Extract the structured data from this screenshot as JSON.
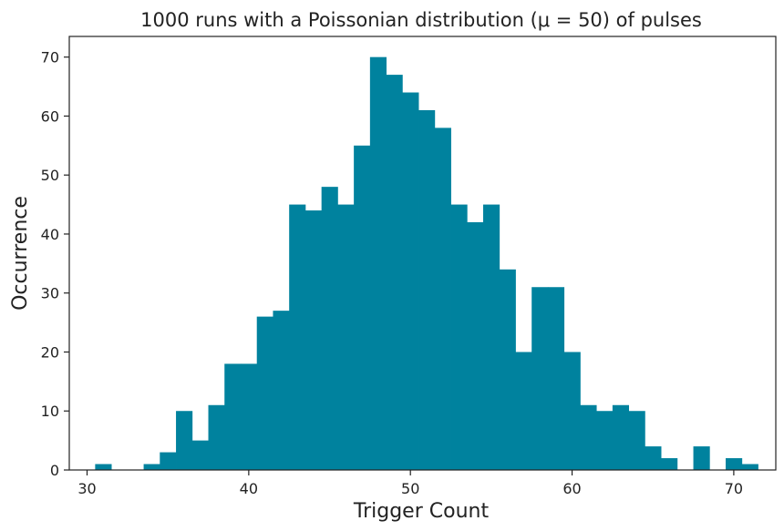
{
  "chart_data": {
    "type": "bar",
    "title": "1000 runs with a Poissonian distribution (μ = 50) of pulses",
    "xlabel": "Trigger Count",
    "ylabel": "Occurrence",
    "xlim": [
      28.9,
      72.6
    ],
    "ylim": [
      0,
      73.5
    ],
    "bin_width": 1,
    "x": [
      31,
      32,
      33,
      34,
      35,
      36,
      37,
      38,
      39,
      40,
      41,
      42,
      43,
      44,
      45,
      46,
      47,
      48,
      49,
      50,
      51,
      52,
      53,
      54,
      55,
      56,
      57,
      58,
      59,
      60,
      61,
      62,
      63,
      64,
      65,
      66,
      67,
      68,
      69,
      70,
      71
    ],
    "values": [
      1,
      0,
      0,
      1,
      3,
      10,
      5,
      11,
      18,
      18,
      26,
      27,
      45,
      44,
      48,
      45,
      55,
      70,
      67,
      64,
      61,
      58,
      45,
      42,
      45,
      34,
      20,
      31,
      31,
      20,
      11,
      10,
      11,
      10,
      4,
      2,
      0,
      4,
      0,
      2,
      1
    ],
    "xticks": [
      30,
      40,
      50,
      60,
      70
    ],
    "yticks": [
      0,
      10,
      20,
      30,
      40,
      50,
      60,
      70
    ],
    "bar_color": "#00829e",
    "grid": false,
    "legend": "none"
  }
}
